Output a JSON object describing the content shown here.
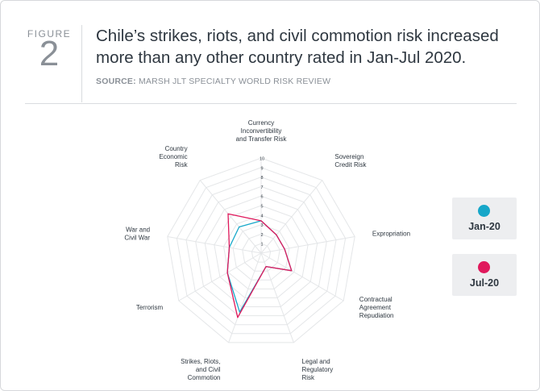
{
  "figure": {
    "label": "FIGURE",
    "number": "2"
  },
  "title_lines": [
    "Chile’s strikes, riots, and civil commotion risk increased",
    "more than any other country rated in Jan-Jul 2020."
  ],
  "source": {
    "prefix": "SOURCE:",
    "text": " MARSH JLT SPECIALTY WORLD RISK REVIEW"
  },
  "colors": {
    "jan": "#16a7c9",
    "jul": "#e0195c",
    "grid": "#e4e6e8",
    "axis_text": "#2e3740"
  },
  "chart_data": {
    "type": "radar",
    "range": [
      1,
      10
    ],
    "ticks": [
      "1",
      "2",
      "3",
      "4",
      "5",
      "6",
      "7",
      "8",
      "9",
      "10"
    ],
    "categories": [
      "Currency Inconvertibility and Transfer Risk",
      "Sovereign Credit Risk",
      "Expropriation",
      "Contractual Agreement Repudiation",
      "Legal and Regulatory Risk",
      "Strikes, Riots, and Civil Commotion",
      "Terrorism",
      "War and Civil War",
      "Country Economic Risk"
    ],
    "category_lines": [
      [
        "Currency",
        "Inconvertibility",
        "and Transfer Risk"
      ],
      [
        "Sovereign",
        "Credit Risk"
      ],
      [
        "Expropriation"
      ],
      [
        "Contractual",
        "Agreement",
        "Repudiation"
      ],
      [
        "Legal and",
        "Regulatory",
        "Risk"
      ],
      [
        "Strikes, Riots,",
        "and Civil",
        "Commotion"
      ],
      [
        "Terrorism"
      ],
      [
        "War and",
        "Civil War"
      ],
      [
        "Country",
        "Economic",
        "Risk"
      ]
    ],
    "series": [
      {
        "name": "Jan-20",
        "values": [
          3.4,
          2.5,
          2.5,
          3.7,
          1.5,
          6.6,
          4.1,
          3.4,
          3.6
        ]
      },
      {
        "name": "Jul-20",
        "values": [
          3.4,
          2.5,
          2.5,
          3.7,
          1.5,
          7.2,
          4.1,
          3.4,
          5.4
        ]
      }
    ],
    "legend": [
      "Jan-20",
      "Jul-20"
    ],
    "legend_position": "right"
  }
}
